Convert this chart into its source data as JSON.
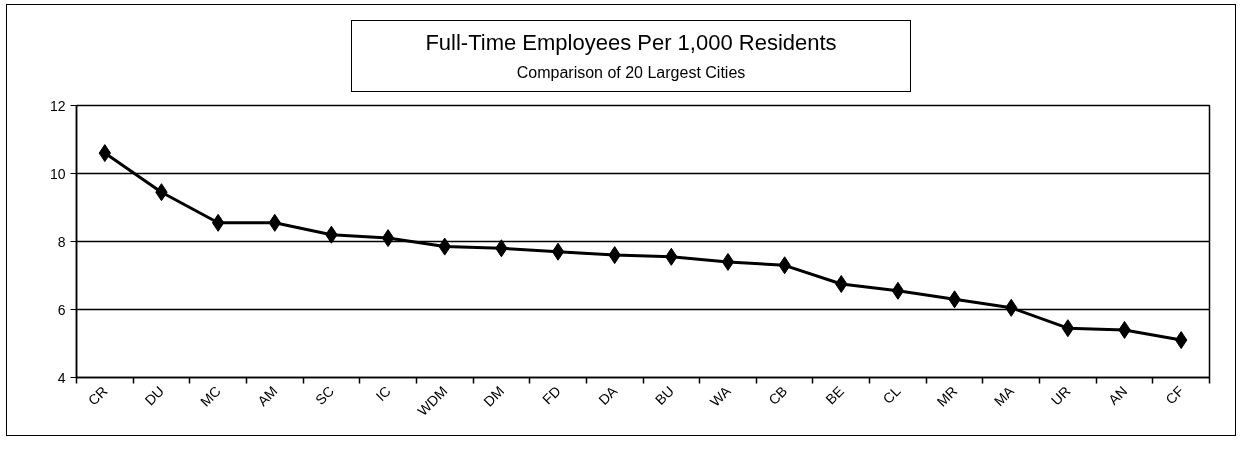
{
  "chart_data": {
    "type": "line",
    "title": "Full-Time Employees Per 1,000 Residents",
    "subtitle": "Comparison of 20 Largest Cities",
    "categories": [
      "CR",
      "DU",
      "MC",
      "AM",
      "SC",
      "IC",
      "WDM",
      "DM",
      "FD",
      "DA",
      "BU",
      "WA",
      "CB",
      "BE",
      "CL",
      "MR",
      "MA",
      "UR",
      "AN",
      "CF"
    ],
    "values": [
      10.6,
      9.45,
      8.55,
      8.55,
      8.2,
      8.1,
      7.85,
      7.8,
      7.7,
      7.6,
      7.55,
      7.4,
      7.3,
      6.75,
      6.55,
      6.3,
      6.05,
      5.45,
      5.4,
      5.1
    ],
    "color": "#000000",
    "marker": "diamond",
    "ylim": [
      4,
      12
    ],
    "yticks": [
      4,
      6,
      8,
      10,
      12
    ],
    "grid": "y"
  }
}
